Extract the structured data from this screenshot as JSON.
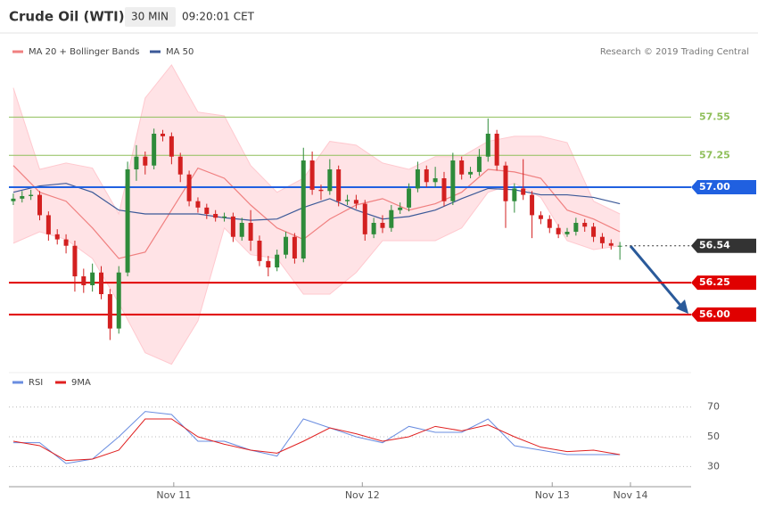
{
  "header": {
    "title": "Crude Oil (WTI)",
    "interval": "30 MIN",
    "time": "09:20:01 CET"
  },
  "chart_data": [
    {
      "type": "candlestick",
      "source": "Research © 2019 Trading Central",
      "x": [
        0,
        1,
        2,
        3,
        4,
        5,
        6,
        7,
        8,
        9,
        10,
        11,
        12,
        13,
        14,
        15,
        16,
        17,
        18,
        19,
        20,
        21,
        22,
        23,
        24,
        25,
        26,
        27,
        28,
        29,
        30,
        31,
        32,
        33,
        34,
        35,
        36,
        37,
        38,
        39,
        40,
        41,
        42,
        43,
        44,
        45,
        46,
        47,
        48,
        49,
        50,
        51,
        52,
        53,
        54,
        55,
        56,
        57,
        58,
        59,
        60,
        61,
        62,
        63,
        64,
        65,
        66,
        67,
        68,
        69
      ],
      "open": [
        56.89,
        56.91,
        56.93,
        56.94,
        56.78,
        56.63,
        56.59,
        56.54,
        56.3,
        56.23,
        56.33,
        56.16,
        55.89,
        56.33,
        57.14,
        57.24,
        57.17,
        57.42,
        57.4,
        57.24,
        57.1,
        56.89,
        56.84,
        56.79,
        56.76,
        56.77,
        56.61,
        56.72,
        56.58,
        56.42,
        56.37,
        56.47,
        56.61,
        56.44,
        57.21,
        56.98,
        56.97,
        57.14,
        56.89,
        56.9,
        56.87,
        56.63,
        56.72,
        56.68,
        56.82,
        56.84,
        56.99,
        57.14,
        57.04,
        57.07,
        56.89,
        57.21,
        57.1,
        57.12,
        57.24,
        57.42,
        57.17,
        56.89,
        56.99,
        56.94,
        56.78,
        56.75,
        56.68,
        56.63,
        56.65,
        56.72,
        56.69,
        56.61,
        56.56,
        56.54
      ],
      "high": [
        56.95,
        56.97,
        56.98,
        56.97,
        56.81,
        56.67,
        56.63,
        56.58,
        56.36,
        56.4,
        56.38,
        56.2,
        56.38,
        57.2,
        57.33,
        57.28,
        57.46,
        57.45,
        57.43,
        57.27,
        57.13,
        56.92,
        56.87,
        56.82,
        56.8,
        56.8,
        56.76,
        56.82,
        56.62,
        56.46,
        56.51,
        56.65,
        56.64,
        57.31,
        57.28,
        57.02,
        57.22,
        57.17,
        56.94,
        56.94,
        56.9,
        56.76,
        56.78,
        56.86,
        56.88,
        57.03,
        57.2,
        57.17,
        57.16,
        57.12,
        57.27,
        57.24,
        57.16,
        57.3,
        57.54,
        57.45,
        57.2,
        57.03,
        57.22,
        56.97,
        56.81,
        56.78,
        56.71,
        56.68,
        56.76,
        56.75,
        56.72,
        56.64,
        56.59,
        56.57
      ],
      "low": [
        56.86,
        56.88,
        56.9,
        56.74,
        56.58,
        56.55,
        56.48,
        56.18,
        56.17,
        56.18,
        56.12,
        55.8,
        55.85,
        56.3,
        57.05,
        57.1,
        57.14,
        57.36,
        57.18,
        57.04,
        56.85,
        56.8,
        56.75,
        56.73,
        56.73,
        56.57,
        56.58,
        56.5,
        56.38,
        56.3,
        56.34,
        56.44,
        56.4,
        56.41,
        56.94,
        56.9,
        56.94,
        56.85,
        56.86,
        56.83,
        56.58,
        56.6,
        56.64,
        56.65,
        56.79,
        56.81,
        56.96,
        57.0,
        57.0,
        56.85,
        56.86,
        57.06,
        57.07,
        57.09,
        57.2,
        57.13,
        56.68,
        56.8,
        56.9,
        56.6,
        56.71,
        56.64,
        56.6,
        56.61,
        56.62,
        56.65,
        56.57,
        56.52,
        56.51,
        56.43
      ],
      "close": [
        56.91,
        56.93,
        56.94,
        56.78,
        56.63,
        56.59,
        56.54,
        56.3,
        56.23,
        56.33,
        56.16,
        55.89,
        56.33,
        57.14,
        57.24,
        57.17,
        57.42,
        57.4,
        57.24,
        57.1,
        56.89,
        56.84,
        56.79,
        56.76,
        56.77,
        56.61,
        56.72,
        56.58,
        56.42,
        56.37,
        56.47,
        56.61,
        56.44,
        57.21,
        56.98,
        56.97,
        57.14,
        56.89,
        56.9,
        56.87,
        56.63,
        56.72,
        56.68,
        56.82,
        56.84,
        56.99,
        57.14,
        57.04,
        57.07,
        56.89,
        57.21,
        57.1,
        57.12,
        57.24,
        57.42,
        57.17,
        56.89,
        56.99,
        56.94,
        56.78,
        56.75,
        56.68,
        56.63,
        56.65,
        56.72,
        56.69,
        56.61,
        56.56,
        56.54,
        56.54
      ],
      "up_color": "#2e8b3a",
      "down_color": "#d32020",
      "xlim": [
        -0.5,
        77.1
      ],
      "ylim": [
        55.6,
        58.19
      ],
      "line_x": [
        0,
        3,
        6,
        9,
        12,
        15,
        18,
        21,
        24,
        27,
        30,
        33,
        36,
        39,
        42,
        45,
        48,
        51,
        54,
        57,
        60,
        63,
        66,
        69
      ],
      "overlays": [
        {
          "name": "MA 20 + Bollinger Bands",
          "color": "#f08080",
          "band_color": "#ffe3e6",
          "band_line": "#ffc9cf",
          "values": [
            57.17,
            56.96,
            56.89,
            56.68,
            56.44,
            56.49,
            56.82,
            57.15,
            57.07,
            56.86,
            56.68,
            56.59,
            56.75,
            56.86,
            56.91,
            56.82,
            56.87,
            56.96,
            57.14,
            57.12,
            57.07,
            56.82,
            56.75,
            56.65
          ],
          "upper": [
            57.78,
            57.14,
            57.19,
            57.15,
            56.79,
            57.7,
            57.96,
            57.59,
            57.56,
            57.17,
            56.96,
            57.07,
            57.36,
            57.33,
            57.19,
            57.14,
            57.24,
            57.24,
            57.36,
            57.4,
            57.4,
            57.35,
            56.89,
            56.79
          ],
          "lower": [
            56.56,
            56.65,
            56.59,
            56.44,
            56.09,
            55.7,
            55.61,
            55.95,
            56.68,
            56.47,
            56.44,
            56.16,
            56.16,
            56.33,
            56.58,
            56.58,
            56.58,
            56.68,
            56.96,
            57.03,
            56.92,
            56.58,
            56.51,
            56.54
          ]
        },
        {
          "name": "MA 50",
          "color": "#3b5998",
          "values": [
            56.96,
            57.01,
            57.03,
            56.96,
            56.82,
            56.79,
            56.79,
            56.79,
            56.76,
            56.74,
            56.75,
            56.84,
            56.91,
            56.82,
            56.75,
            56.77,
            56.82,
            56.91,
            56.99,
            56.98,
            56.94,
            56.94,
            56.92,
            56.87
          ]
        }
      ],
      "levels": [
        {
          "value": 57.55,
          "label": "57.55",
          "color": "#8fbf5a",
          "box": false,
          "dotted": false
        },
        {
          "value": 57.25,
          "label": "57.25",
          "color": "#8fbf5a",
          "box": false,
          "dotted": false
        },
        {
          "value": 57.0,
          "label": "57.00",
          "color": "#2060e0",
          "box": true,
          "dotted": false
        },
        {
          "value": 56.54,
          "label": "56.54",
          "color": "#333333",
          "box": true,
          "dotted": true
        },
        {
          "value": 56.25,
          "label": "56.25",
          "color": "#e00000",
          "box": true,
          "dotted": false
        },
        {
          "value": 56.0,
          "label": "56.00",
          "color": "#e00000",
          "box": true,
          "dotted": false
        }
      ]
    },
    {
      "type": "line",
      "xlim": [
        -0.5,
        77.1
      ],
      "ylim": [
        20,
        80
      ],
      "yticks": [
        30,
        50,
        70
      ],
      "grid": true,
      "x": [
        0,
        3,
        6,
        9,
        12,
        15,
        18,
        21,
        24,
        27,
        30,
        33,
        36,
        39,
        42,
        45,
        48,
        51,
        54,
        57,
        60,
        63,
        66,
        69
      ],
      "series": [
        {
          "name": "RSI",
          "color": "#6a8de0",
          "values": [
            46,
            46,
            32,
            35,
            50,
            67,
            65,
            47,
            47,
            41,
            37,
            62,
            56,
            50,
            46,
            57,
            53,
            53,
            62,
            44,
            41,
            38,
            38,
            38
          ]
        },
        {
          "name": "9MA",
          "color": "#e02020",
          "values": [
            47,
            44,
            34,
            35,
            41,
            62,
            62,
            50,
            45,
            41,
            39,
            47,
            56,
            52,
            47,
            50,
            57,
            54,
            58,
            50,
            43,
            40,
            41,
            38
          ]
        }
      ],
      "xticks": [
        {
          "value": 18.25,
          "label": "Nov 11"
        },
        {
          "value": 39.7,
          "label": "Nov 12"
        },
        {
          "value": 61.3,
          "label": "Nov 13"
        },
        {
          "value": 70.2,
          "label": "Nov 14"
        }
      ]
    }
  ]
}
